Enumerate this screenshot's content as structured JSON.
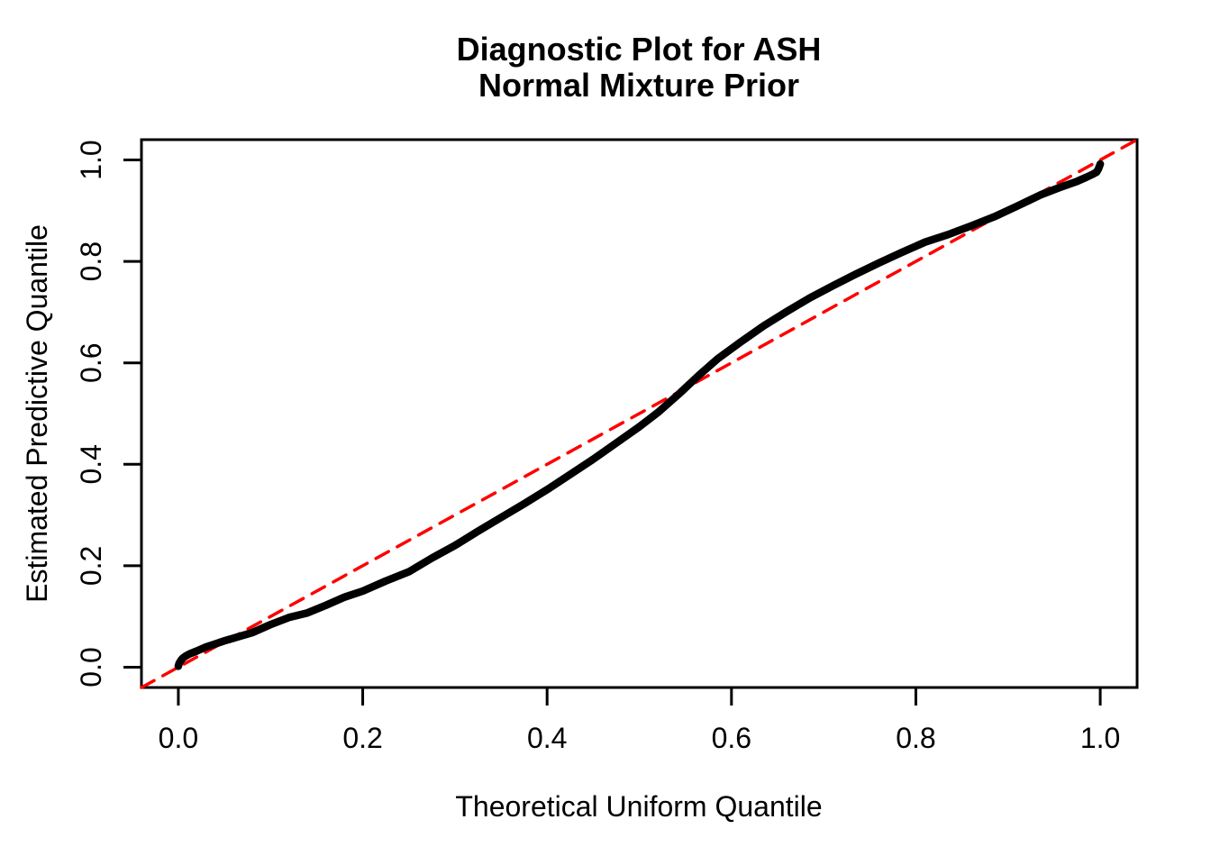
{
  "figure": {
    "title_line1": "Diagnostic Plot for ASH",
    "title_line2": "Normal Mixture Prior"
  },
  "colors": {
    "curve": "#000000",
    "reference_line": "#FF0000",
    "axis": "#000000",
    "background": "#FFFFFF"
  },
  "chart_data": {
    "type": "line",
    "title": "Diagnostic Plot for ASH\nNormal Mixture Prior",
    "xlabel": "Theoretical Uniform Quantile",
    "ylabel": "Estimated Predictive Quantile",
    "xlim": [
      -0.04,
      1.04
    ],
    "ylim": [
      -0.04,
      1.04
    ],
    "grid": false,
    "legend": "none",
    "x_ticks": [
      0.0,
      0.2,
      0.4,
      0.6,
      0.8,
      1.0
    ],
    "x_tick_labels": [
      "0.0",
      "0.2",
      "0.4",
      "0.6",
      "0.8",
      "1.0"
    ],
    "y_ticks": [
      0.0,
      0.2,
      0.4,
      0.6,
      0.8,
      1.0
    ],
    "y_tick_labels": [
      "0.0",
      "0.2",
      "0.4",
      "0.6",
      "0.8",
      "1.0"
    ],
    "series": [
      {
        "name": "estimated-predictive-quantile-curve",
        "style": "solid",
        "color": "#000000",
        "stroke_width": 8.5,
        "points": [
          [
            0.0,
            0.002
          ],
          [
            0.001,
            0.008
          ],
          [
            0.003,
            0.014
          ],
          [
            0.005,
            0.018
          ],
          [
            0.008,
            0.022
          ],
          [
            0.012,
            0.026
          ],
          [
            0.02,
            0.032
          ],
          [
            0.03,
            0.04
          ],
          [
            0.04,
            0.046
          ],
          [
            0.05,
            0.052
          ],
          [
            0.065,
            0.06
          ],
          [
            0.08,
            0.068
          ],
          [
            0.1,
            0.084
          ],
          [
            0.12,
            0.098
          ],
          [
            0.14,
            0.107
          ],
          [
            0.16,
            0.122
          ],
          [
            0.18,
            0.138
          ],
          [
            0.2,
            0.15
          ],
          [
            0.225,
            0.17
          ],
          [
            0.25,
            0.188
          ],
          [
            0.275,
            0.215
          ],
          [
            0.3,
            0.24
          ],
          [
            0.325,
            0.268
          ],
          [
            0.35,
            0.295
          ],
          [
            0.375,
            0.322
          ],
          [
            0.4,
            0.35
          ],
          [
            0.425,
            0.38
          ],
          [
            0.45,
            0.41
          ],
          [
            0.475,
            0.442
          ],
          [
            0.5,
            0.474
          ],
          [
            0.52,
            0.502
          ],
          [
            0.545,
            0.542
          ],
          [
            0.565,
            0.576
          ],
          [
            0.585,
            0.608
          ],
          [
            0.61,
            0.641
          ],
          [
            0.635,
            0.673
          ],
          [
            0.66,
            0.701
          ],
          [
            0.685,
            0.728
          ],
          [
            0.71,
            0.752
          ],
          [
            0.735,
            0.775
          ],
          [
            0.76,
            0.797
          ],
          [
            0.785,
            0.818
          ],
          [
            0.81,
            0.838
          ],
          [
            0.835,
            0.853
          ],
          [
            0.86,
            0.87
          ],
          [
            0.885,
            0.888
          ],
          [
            0.91,
            0.909
          ],
          [
            0.935,
            0.931
          ],
          [
            0.955,
            0.945
          ],
          [
            0.975,
            0.958
          ],
          [
            0.985,
            0.966
          ],
          [
            0.992,
            0.972
          ],
          [
            0.996,
            0.976
          ],
          [
            0.998,
            0.982
          ],
          [
            1.0,
            0.992
          ]
        ]
      },
      {
        "name": "identity-reference-line",
        "style": "dashed",
        "color": "#FF0000",
        "stroke_width": 3.5,
        "points": [
          [
            -0.04,
            -0.04
          ],
          [
            1.04,
            1.04
          ]
        ]
      }
    ]
  }
}
